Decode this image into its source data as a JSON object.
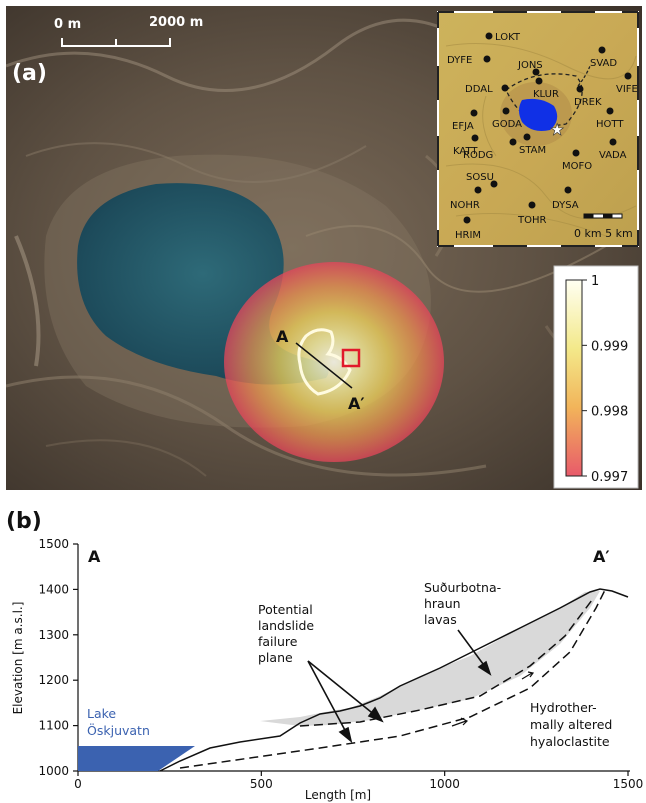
{
  "panel_a": {
    "label": "(a)",
    "scale_bar": {
      "left": "0 m",
      "right": "2000 m"
    },
    "inset": {
      "stations": [
        "LOKT",
        "SVAD",
        "DYFE",
        "JONS",
        "VIFE",
        "DDAL",
        "KLUR",
        "DREK",
        "HOTT",
        "EFJA",
        "GODA",
        "KATT",
        "STAM",
        "RODG",
        "MOFO",
        "VADA",
        "NOHR",
        "SOSU",
        "DYSA",
        "TOHR",
        "HRIM"
      ],
      "scale": "0 km 5 km"
    },
    "colorbar": {
      "ticks": [
        "1",
        "0.999",
        "0.998",
        "0.997"
      ],
      "colors": {
        "top": "#fffff2",
        "mid": "#f0e36a",
        "low": "#f2a64e",
        "bottom": "#e85a6a"
      }
    },
    "profile": {
      "start": "A",
      "end": "A′"
    }
  },
  "panel_b": {
    "label": "(b)",
    "ylabel": "Elevation [m a.s.l.]",
    "xlabel": "Length [m]",
    "yticks": [
      "1500",
      "1400",
      "1300",
      "1200",
      "1100",
      "1000"
    ],
    "xticks": [
      "0",
      "500",
      "1000",
      "1500"
    ],
    "end_labels": {
      "left": "A",
      "right": "A′"
    },
    "annotations": {
      "lake": [
        "Lake",
        "Öskjuvatn"
      ],
      "lavas": [
        "Suðurbotna-",
        "hraun",
        "lavas"
      ],
      "failure": [
        "Potential",
        "landslide",
        "failure",
        "plane"
      ],
      "altered": [
        "Hydrother-",
        "mally altered",
        "hyaloclastite"
      ]
    },
    "colors": {
      "lake": "#3b62b0",
      "lava": "#d9d9d9",
      "lake_text": "#3b62b0"
    }
  }
}
